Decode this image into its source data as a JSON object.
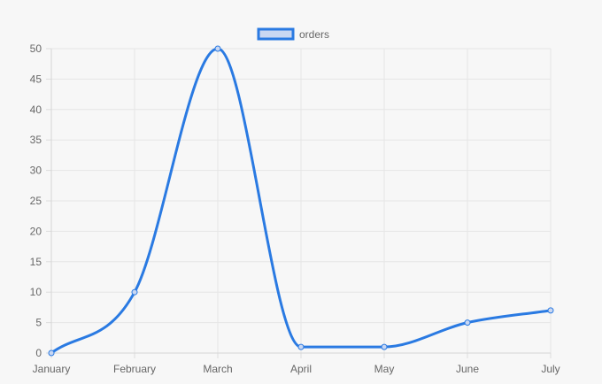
{
  "chart_data": {
    "type": "line",
    "categories": [
      "January",
      "February",
      "March",
      "April",
      "May",
      "June",
      "July"
    ],
    "series": [
      {
        "name": "orders",
        "values": [
          0,
          10,
          50,
          1,
          1,
          5,
          7
        ]
      }
    ],
    "ylim": [
      0,
      50
    ],
    "yticks": [
      "0",
      "5",
      "10",
      "15",
      "20",
      "25",
      "30",
      "35",
      "40",
      "45",
      "50"
    ],
    "grid": true,
    "legend_position": "top",
    "line_color": "#2a7ae2",
    "fill_color": "#c9d7f2",
    "grid_color": "#e6e6e6"
  }
}
